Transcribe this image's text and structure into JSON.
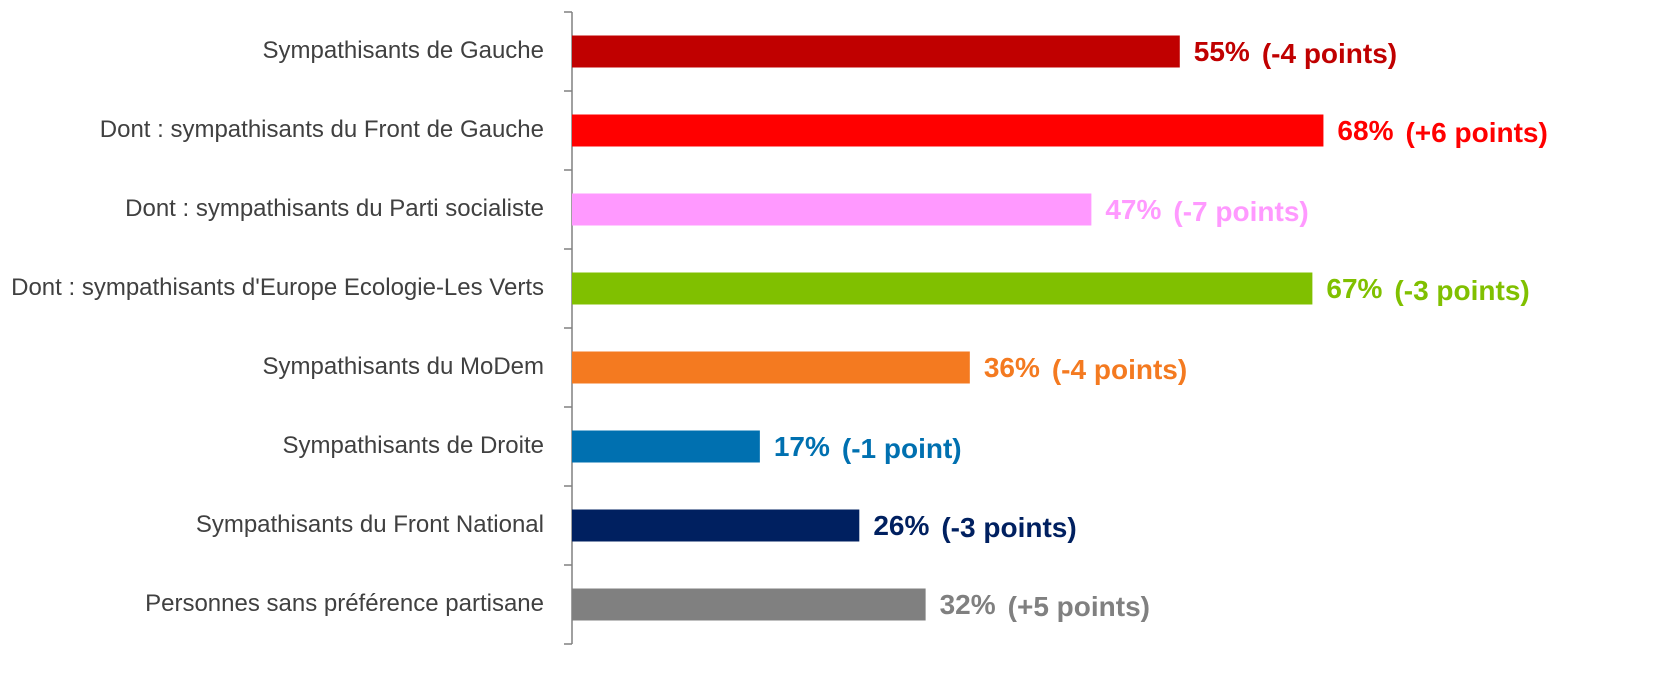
{
  "chart_data": {
    "type": "barh",
    "categories": [
      "Sympathisants de Gauche",
      "Dont : sympathisants du Front de Gauche",
      "Dont : sympathisants du Parti socialiste",
      "Dont : sympathisants d'Europe Ecologie-Les Verts",
      "Sympathisants du MoDem",
      "Sympathisants de Droite",
      "Sympathisants du Front National",
      "Personnes sans préférence partisane"
    ],
    "values": [
      55,
      68,
      47,
      67,
      36,
      17,
      26,
      32
    ],
    "value_labels": [
      "55%",
      "68%",
      "47%",
      "67%",
      "36%",
      "17%",
      "26%",
      "32%"
    ],
    "changes": [
      "(-4 points)",
      "(+6 points)",
      "(-7 points)",
      "(-3 points)",
      "(-4 points)",
      "(-1 point)",
      "(-3 points)",
      "(+5 points)"
    ],
    "colors": [
      "#c00000",
      "#ff0000",
      "#ff99ff",
      "#80c000",
      "#f47a20",
      "#0070b0",
      "#002060",
      "#808080"
    ],
    "xlim": [
      0,
      99
    ]
  }
}
